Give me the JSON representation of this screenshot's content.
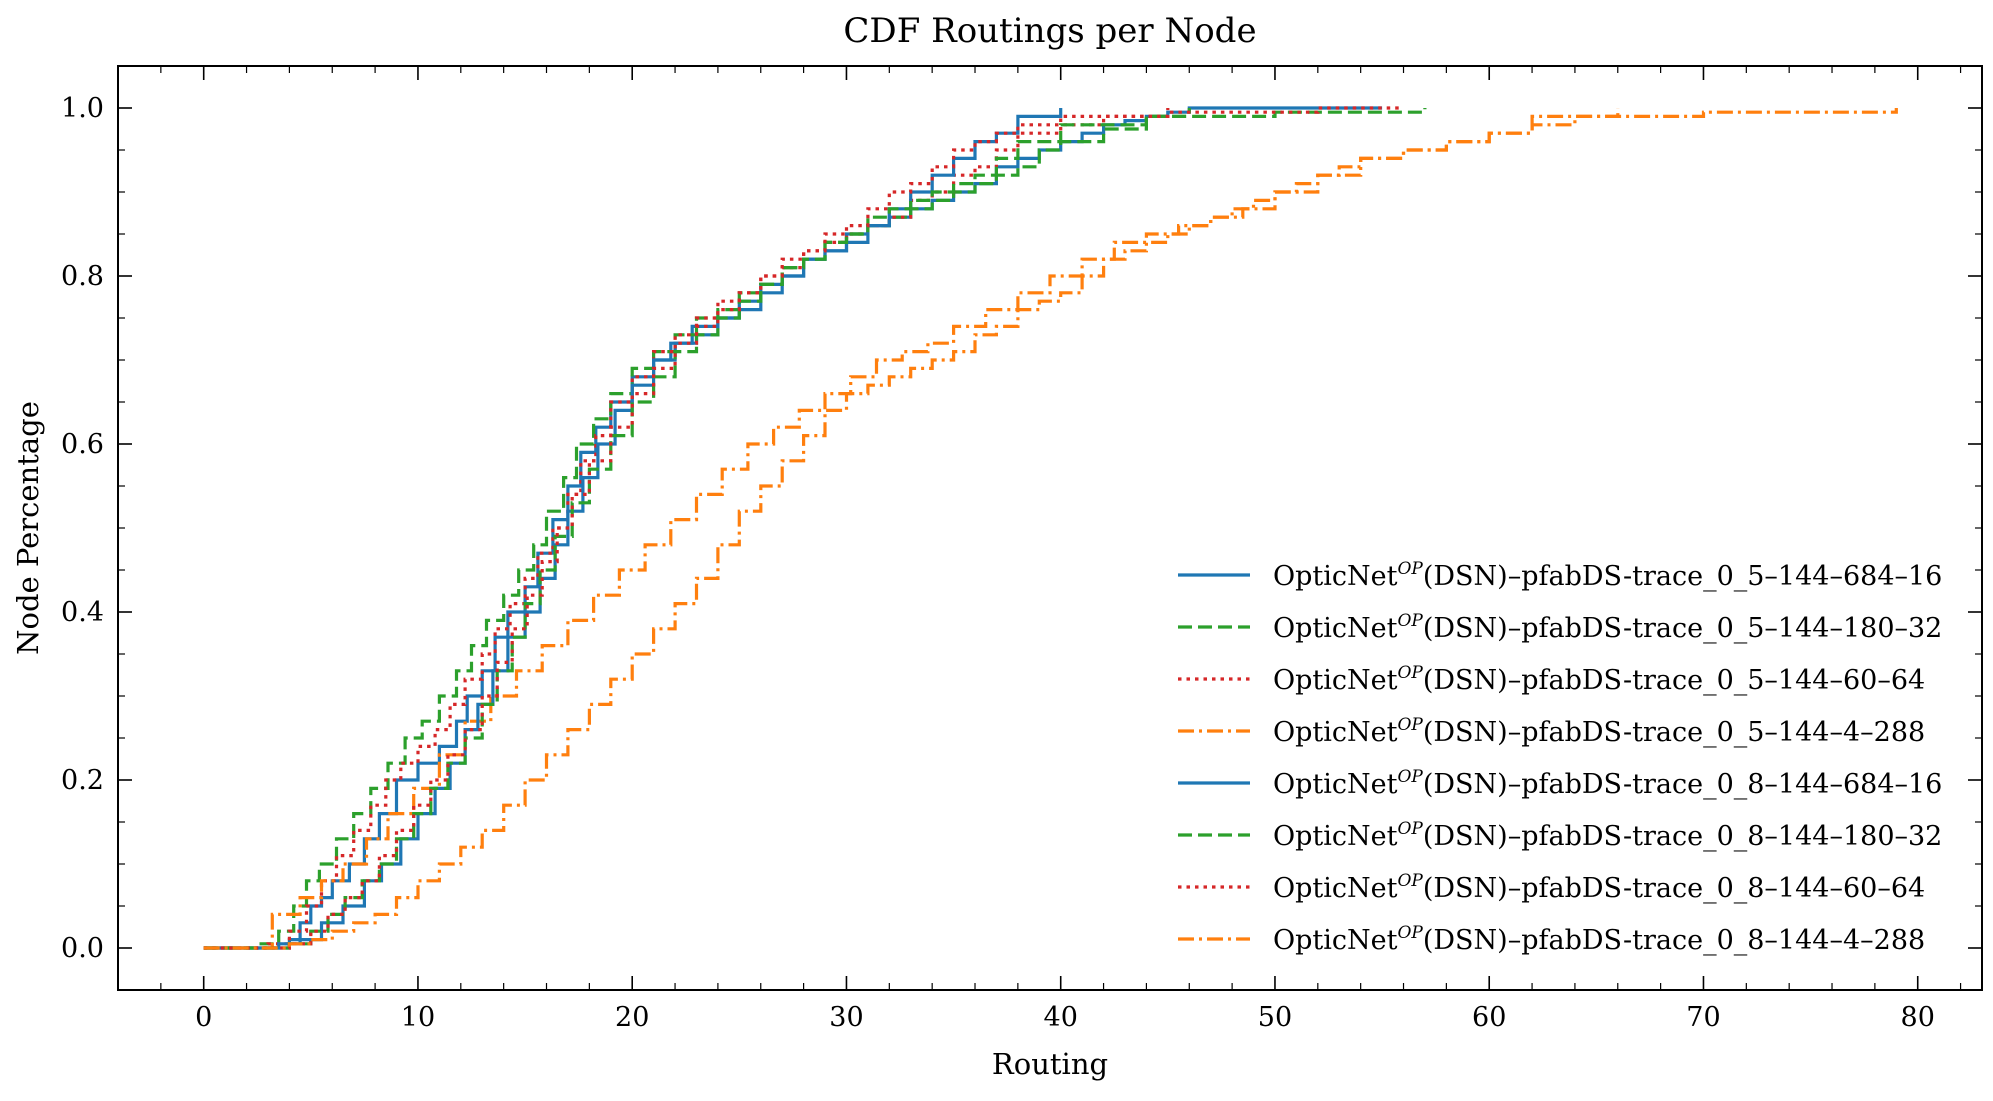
{
  "chart_data": {
    "type": "line",
    "step": true,
    "title": "CDF Routings per Node",
    "xlabel": "Routing",
    "ylabel": "Node Percentage",
    "xlim": [
      -4,
      83
    ],
    "ylim": [
      -0.05,
      1.05
    ],
    "xticks": [
      0,
      10,
      20,
      30,
      40,
      50,
      60,
      70,
      80
    ],
    "yticks": [
      0.0,
      0.2,
      0.4,
      0.6,
      0.8,
      1.0
    ],
    "xtick_labels": [
      "0",
      "10",
      "20",
      "30",
      "40",
      "50",
      "60",
      "70",
      "80"
    ],
    "ytick_labels": [
      "0.0",
      "0.2",
      "0.4",
      "0.6",
      "0.8",
      "1.0"
    ],
    "legend_position": "lower-right",
    "grid": false,
    "series": [
      {
        "name": "OpticNet(DSN)–pfabDS-trace_0_5–144–684–16",
        "legend_base": "OpticNet",
        "legend_sup": "OP",
        "legend_rest": "(DSN)–pfabDS-trace_0_5–144–684–16",
        "color": "#1f77b4",
        "dash": "solid",
        "x": [
          0,
          3,
          4,
          4.5,
          5,
          5.5,
          6,
          6.8,
          7.5,
          8.2,
          9,
          10,
          11,
          11.8,
          12.3,
          13,
          13.6,
          14.2,
          15,
          15.6,
          16.3,
          17,
          17.6,
          18.3,
          19,
          20,
          21,
          21.8,
          22.8,
          24,
          25,
          26,
          27,
          28,
          29,
          30,
          31,
          32,
          33,
          34,
          35,
          36,
          37,
          38,
          39,
          40,
          41,
          42,
          43,
          44,
          45,
          46,
          48,
          50,
          55
        ],
        "y": [
          0,
          0,
          0.01,
          0.03,
          0.05,
          0.06,
          0.08,
          0.1,
          0.13,
          0.16,
          0.2,
          0.22,
          0.24,
          0.27,
          0.3,
          0.33,
          0.37,
          0.4,
          0.43,
          0.47,
          0.51,
          0.55,
          0.59,
          0.62,
          0.65,
          0.68,
          0.7,
          0.72,
          0.74,
          0.75,
          0.77,
          0.79,
          0.8,
          0.82,
          0.83,
          0.85,
          0.86,
          0.87,
          0.88,
          0.89,
          0.9,
          0.91,
          0.93,
          0.94,
          0.95,
          0.96,
          0.97,
          0.98,
          0.985,
          0.99,
          0.995,
          1.0,
          1.0,
          1.0,
          1.0
        ]
      },
      {
        "name": "OpticNet(DSN)–pfabDS-trace_0_5–144–180–32",
        "legend_base": "OpticNet",
        "legend_sup": "OP",
        "legend_rest": "(DSN)–pfabDS-trace_0_5–144–180–32",
        "color": "#2ca02c",
        "dash": "dashed",
        "x": [
          0,
          2.5,
          3.5,
          4.2,
          4.8,
          5.4,
          6.2,
          7,
          7.8,
          8.6,
          9.4,
          10.2,
          11,
          11.8,
          12.5,
          13.2,
          14,
          14.7,
          15.4,
          16,
          16.8,
          17.4,
          18.2,
          19,
          20,
          21,
          22,
          23,
          24,
          25,
          26,
          27,
          28,
          29,
          30,
          31,
          32,
          33,
          34,
          35,
          36,
          37,
          38,
          39,
          40,
          42,
          44,
          46
        ],
        "y": [
          0,
          0.005,
          0.02,
          0.05,
          0.08,
          0.1,
          0.13,
          0.16,
          0.19,
          0.22,
          0.25,
          0.27,
          0.3,
          0.33,
          0.36,
          0.39,
          0.42,
          0.45,
          0.48,
          0.52,
          0.56,
          0.6,
          0.63,
          0.66,
          0.69,
          0.71,
          0.73,
          0.75,
          0.76,
          0.78,
          0.79,
          0.81,
          0.82,
          0.84,
          0.85,
          0.86,
          0.87,
          0.88,
          0.89,
          0.9,
          0.91,
          0.92,
          0.93,
          0.95,
          0.96,
          0.975,
          0.99,
          1.0
        ]
      },
      {
        "name": "OpticNet(DSN)–pfabDS-trace_0_5–144–60–64",
        "legend_base": "OpticNet",
        "legend_sup": "OP",
        "legend_rest": "(DSN)–pfabDS-trace_0_5–144–60–64",
        "color": "#d62728",
        "dash": "dotted",
        "x": [
          0,
          3,
          4,
          4.8,
          5.5,
          6.2,
          7,
          7.8,
          8.5,
          9.2,
          10,
          10.8,
          11.5,
          12.2,
          13,
          13.6,
          14.3,
          15,
          15.6,
          16.3,
          17,
          17.6,
          18.3,
          19,
          20,
          21,
          22,
          23,
          24,
          25,
          26,
          27,
          28,
          29,
          30,
          31,
          32,
          33,
          34,
          35,
          36,
          37,
          38,
          40,
          42,
          45
        ],
        "y": [
          0,
          0.005,
          0.02,
          0.05,
          0.08,
          0.11,
          0.14,
          0.17,
          0.2,
          0.22,
          0.24,
          0.26,
          0.29,
          0.32,
          0.35,
          0.38,
          0.41,
          0.44,
          0.47,
          0.5,
          0.54,
          0.58,
          0.61,
          0.65,
          0.68,
          0.71,
          0.73,
          0.75,
          0.77,
          0.78,
          0.8,
          0.81,
          0.83,
          0.84,
          0.85,
          0.86,
          0.87,
          0.89,
          0.9,
          0.92,
          0.93,
          0.95,
          0.97,
          0.98,
          0.99,
          1.0
        ]
      },
      {
        "name": "OpticNet(DSN)–pfabDS-trace_0_5–144–4–288",
        "legend_base": "OpticNet",
        "legend_sup": "OP",
        "legend_rest": "(DSN)–pfabDS-trace_0_5–144–4–288",
        "color": "#ff7f0e",
        "dash": "dashdot",
        "x": [
          0,
          3.2,
          4.5,
          5.5,
          6.5,
          7.6,
          8.6,
          9.8,
          11,
          12.2,
          13.4,
          14.6,
          15.8,
          17,
          18.2,
          19.4,
          20.6,
          21.8,
          23,
          24.2,
          25.4,
          26.6,
          27.8,
          29,
          30.2,
          31.4,
          32.6,
          33.8,
          35,
          36.5,
          38,
          39.5,
          41,
          42.5,
          44,
          45.5,
          47,
          48.5,
          50,
          52,
          54,
          56,
          58,
          60,
          62,
          64,
          70,
          79
        ],
        "y": [
          0,
          0.04,
          0.06,
          0.08,
          0.1,
          0.13,
          0.16,
          0.19,
          0.23,
          0.27,
          0.3,
          0.33,
          0.36,
          0.39,
          0.42,
          0.45,
          0.48,
          0.51,
          0.54,
          0.57,
          0.6,
          0.62,
          0.64,
          0.66,
          0.68,
          0.7,
          0.71,
          0.72,
          0.74,
          0.76,
          0.78,
          0.8,
          0.82,
          0.84,
          0.85,
          0.86,
          0.87,
          0.88,
          0.9,
          0.92,
          0.94,
          0.95,
          0.96,
          0.97,
          0.98,
          0.99,
          0.995,
          1.0
        ]
      },
      {
        "name": "OpticNet(DSN)–pfabDS-trace_0_8–144–684–16",
        "legend_base": "OpticNet",
        "legend_sup": "OP",
        "legend_rest": "(DSN)–pfabDS-trace_0_8–144–684–16",
        "color": "#1f77b4",
        "dash": "solid",
        "x": [
          0,
          3.5,
          4.5,
          5.5,
          6.5,
          7.5,
          8.3,
          9.2,
          10,
          10.8,
          11.5,
          12.2,
          12.8,
          13.5,
          14.2,
          15,
          15.7,
          16.4,
          17,
          17.7,
          18.4,
          19.2,
          20,
          21,
          22,
          23,
          24,
          25,
          26,
          27,
          28,
          29,
          30,
          31,
          32,
          33,
          34,
          35,
          36,
          37,
          38,
          40
        ],
        "y": [
          0,
          0.005,
          0.01,
          0.03,
          0.05,
          0.08,
          0.1,
          0.13,
          0.16,
          0.19,
          0.22,
          0.26,
          0.29,
          0.33,
          0.37,
          0.4,
          0.44,
          0.48,
          0.52,
          0.56,
          0.6,
          0.64,
          0.67,
          0.7,
          0.72,
          0.73,
          0.75,
          0.76,
          0.78,
          0.8,
          0.82,
          0.83,
          0.84,
          0.86,
          0.88,
          0.9,
          0.92,
          0.94,
          0.96,
          0.97,
          0.99,
          1.0
        ]
      },
      {
        "name": "OpticNet(DSN)–pfabDS-trace_0_8–144–180–32",
        "legend_base": "OpticNet",
        "legend_sup": "OP",
        "legend_rest": "(DSN)–pfabDS-trace_0_8–144–180–32",
        "color": "#2ca02c",
        "dash": "dashed",
        "x": [
          0,
          4,
          5,
          5.8,
          6.6,
          7.4,
          8.2,
          9,
          9.8,
          10.6,
          11.4,
          12.2,
          13,
          13.7,
          14.4,
          15,
          15.7,
          16.4,
          17.2,
          18,
          19,
          20,
          21,
          22,
          23,
          24,
          25,
          26,
          27,
          28,
          29,
          30,
          31,
          32,
          33,
          34,
          35,
          36,
          37,
          38,
          40,
          44,
          50,
          57
        ],
        "y": [
          0,
          0.005,
          0.02,
          0.04,
          0.06,
          0.08,
          0.1,
          0.13,
          0.16,
          0.19,
          0.22,
          0.25,
          0.29,
          0.33,
          0.37,
          0.41,
          0.45,
          0.49,
          0.53,
          0.57,
          0.61,
          0.65,
          0.68,
          0.71,
          0.73,
          0.75,
          0.77,
          0.79,
          0.81,
          0.82,
          0.84,
          0.85,
          0.87,
          0.88,
          0.89,
          0.9,
          0.91,
          0.92,
          0.94,
          0.96,
          0.98,
          0.99,
          0.995,
          1.0
        ]
      },
      {
        "name": "OpticNet(DSN)–pfabDS-trace_0_8–144–60–64",
        "legend_base": "OpticNet",
        "legend_sup": "OP",
        "legend_rest": "(DSN)–pfabDS-trace_0_8–144–60–64",
        "color": "#d62728",
        "dash": "dotted",
        "x": [
          0,
          4,
          5,
          5.8,
          6.6,
          7.4,
          8.2,
          9,
          9.8,
          10.6,
          11.4,
          12.2,
          13,
          13.7,
          14.4,
          15.1,
          15.8,
          16.5,
          17.2,
          18,
          19,
          20,
          21,
          22,
          23,
          24,
          25,
          26,
          27,
          28,
          29,
          30,
          31,
          32,
          33,
          34,
          35,
          36,
          37,
          38,
          40,
          45,
          52,
          56
        ],
        "y": [
          0,
          0.005,
          0.02,
          0.04,
          0.06,
          0.08,
          0.11,
          0.14,
          0.17,
          0.2,
          0.23,
          0.26,
          0.3,
          0.34,
          0.38,
          0.42,
          0.46,
          0.5,
          0.54,
          0.58,
          0.62,
          0.66,
          0.69,
          0.72,
          0.74,
          0.76,
          0.78,
          0.8,
          0.82,
          0.83,
          0.85,
          0.86,
          0.88,
          0.9,
          0.91,
          0.93,
          0.95,
          0.96,
          0.97,
          0.98,
          0.99,
          0.995,
          1.0,
          1.0
        ]
      },
      {
        "name": "OpticNet(DSN)–pfabDS-trace_0_8–144–4–288",
        "legend_base": "OpticNet",
        "legend_sup": "OP",
        "legend_rest": "(DSN)–pfabDS-trace_0_8–144–4–288",
        "color": "#ff7f0e",
        "dash": "dashdot",
        "x": [
          0,
          4,
          5,
          6,
          7,
          8,
          9,
          10,
          11,
          12,
          13,
          14,
          15,
          16,
          17,
          18,
          19,
          20,
          21,
          22,
          23,
          24,
          25,
          26,
          27,
          28,
          29,
          30,
          31,
          32,
          33,
          34,
          35,
          36,
          37,
          38,
          39,
          40,
          41,
          42,
          43,
          44,
          45,
          46,
          47,
          48,
          49,
          50,
          51,
          52,
          53,
          54,
          56,
          58,
          60,
          62,
          66
        ],
        "y": [
          0,
          0.005,
          0.01,
          0.02,
          0.03,
          0.04,
          0.06,
          0.08,
          0.1,
          0.12,
          0.14,
          0.17,
          0.2,
          0.23,
          0.26,
          0.29,
          0.32,
          0.35,
          0.38,
          0.41,
          0.44,
          0.48,
          0.52,
          0.55,
          0.58,
          0.61,
          0.64,
          0.66,
          0.67,
          0.68,
          0.69,
          0.7,
          0.71,
          0.73,
          0.74,
          0.76,
          0.77,
          0.78,
          0.8,
          0.82,
          0.83,
          0.84,
          0.85,
          0.86,
          0.87,
          0.88,
          0.89,
          0.9,
          0.91,
          0.92,
          0.93,
          0.94,
          0.95,
          0.96,
          0.97,
          0.99,
          1.0
        ]
      }
    ]
  }
}
